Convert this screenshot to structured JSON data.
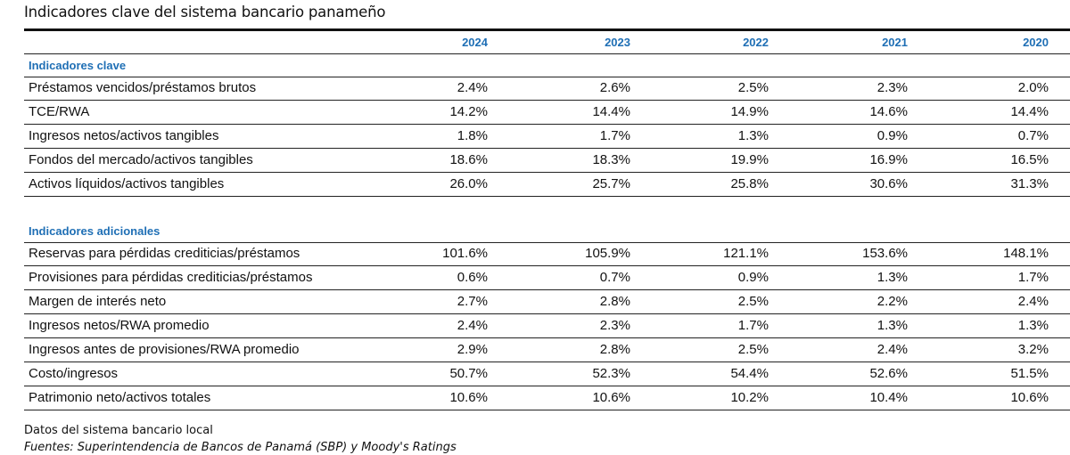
{
  "title": "Indicadores clave del sistema bancario panameño",
  "years": [
    "2024",
    "2023",
    "2022",
    "2021",
    "2020"
  ],
  "sections": [
    {
      "label": "Indicadores clave",
      "rows": [
        {
          "label": "Préstamos vencidos/préstamos brutos",
          "values": [
            "2.4%",
            "2.6%",
            "2.5%",
            "2.3%",
            "2.0%"
          ]
        },
        {
          "label": "TCE/RWA",
          "values": [
            "14.2%",
            "14.4%",
            "14.9%",
            "14.6%",
            "14.4%"
          ]
        },
        {
          "label": "Ingresos netos/activos tangibles",
          "values": [
            "1.8%",
            "1.7%",
            "1.3%",
            "0.9%",
            "0.7%"
          ]
        },
        {
          "label": "Fondos del mercado/activos tangibles",
          "values": [
            "18.6%",
            "18.3%",
            "19.9%",
            "16.9%",
            "16.5%"
          ]
        },
        {
          "label": "Activos líquidos/activos tangibles",
          "values": [
            "26.0%",
            "25.7%",
            "25.8%",
            "30.6%",
            "31.3%"
          ]
        }
      ]
    },
    {
      "label": "Indicadores adicionales",
      "rows": [
        {
          "label": "Reservas para pérdidas crediticias/préstamos",
          "values": [
            "101.6%",
            "105.9%",
            "121.1%",
            "153.6%",
            "148.1%"
          ]
        },
        {
          "label": "Provisiones para pérdidas crediticias/préstamos",
          "values": [
            "0.6%",
            "0.7%",
            "0.9%",
            "1.3%",
            "1.7%"
          ]
        },
        {
          "label": "Margen de interés neto",
          "values": [
            "2.7%",
            "2.8%",
            "2.5%",
            "2.2%",
            "2.4%"
          ]
        },
        {
          "label": "Ingresos netos/RWA promedio",
          "values": [
            "2.4%",
            "2.3%",
            "1.7%",
            "1.3%",
            "1.3%"
          ]
        },
        {
          "label": "Ingresos antes de provisiones/RWA promedio",
          "values": [
            "2.9%",
            "2.8%",
            "2.5%",
            "2.4%",
            "3.2%"
          ]
        },
        {
          "label": "Costo/ingresos",
          "values": [
            "50.7%",
            "52.3%",
            "54.4%",
            "52.6%",
            "51.5%"
          ]
        },
        {
          "label": "Patrimonio neto/activos totales",
          "values": [
            "10.6%",
            "10.6%",
            "10.2%",
            "10.4%",
            "10.6%"
          ]
        }
      ]
    }
  ],
  "footer": {
    "note": "Datos del sistema bancario local",
    "sources": "Fuentes: Superintendencia de Bancos de Panamá (SBP) y Moody's Ratings"
  }
}
